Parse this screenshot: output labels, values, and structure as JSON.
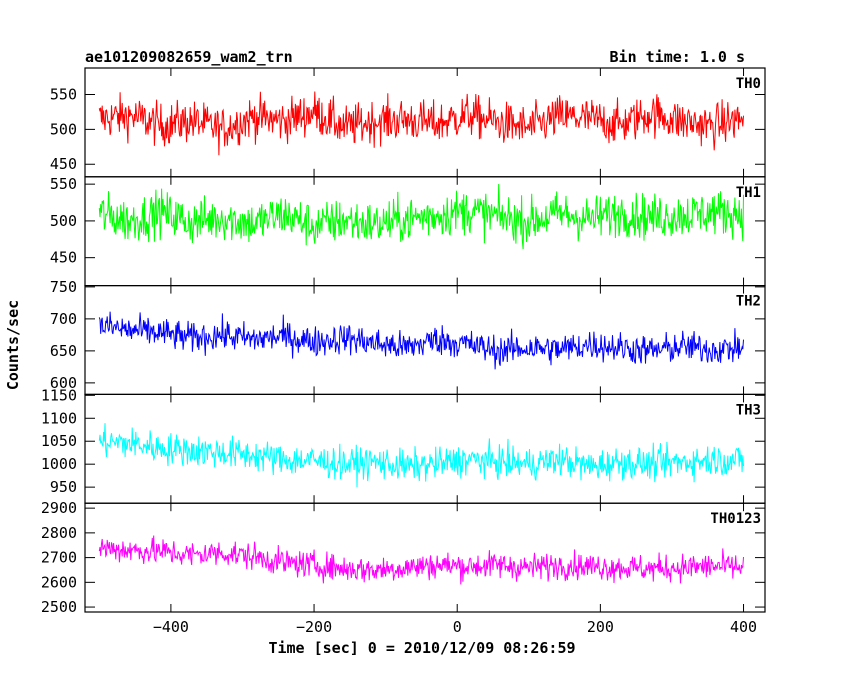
{
  "chart_data": {
    "type": "line",
    "title": "ae101209082659_wam2_trn",
    "subtitle": "Bin time: 1.0 s",
    "xlabel": "Time [sec] 0 = 2010/12/09 08:26:59",
    "ylabel": "Counts/sec",
    "xlim": [
      -520,
      430
    ],
    "x_range": [
      -500,
      400
    ],
    "xticks": [
      -400,
      -200,
      0,
      200,
      400
    ],
    "xtick_labels": [
      "−400",
      "−200",
      "0",
      "200",
      "400"
    ],
    "grid": false,
    "panels": [
      {
        "name": "TH0",
        "color": "#ff0000",
        "ylim": [
          432,
          588
        ],
        "yticks": [
          450,
          500,
          550
        ],
        "mean": 512,
        "spread": 28,
        "samples": [
          515,
          520,
          506,
          512,
          500,
          518,
          512,
          525,
          503,
          512,
          514,
          508,
          521,
          510,
          502,
          519,
          515,
          507,
          523,
          511,
          505,
          516
        ]
      },
      {
        "name": "TH1",
        "color": "#00ff00",
        "ylim": [
          412,
          560
        ],
        "yticks": [
          450,
          500,
          550
        ],
        "mean": 506,
        "spread": 28,
        "samples": [
          510,
          500,
          512,
          498,
          505,
          496,
          509,
          493,
          501,
          495,
          502,
          508,
          514,
          506,
          499,
          510,
          503,
          511,
          505,
          508,
          512,
          510
        ]
      },
      {
        "name": "TH2",
        "color": "#0000ff",
        "ylim": [
          582,
          752
        ],
        "yticks": [
          600,
          650,
          700,
          750
        ],
        "mean": 665,
        "spread": 22,
        "samples": [
          690,
          682,
          678,
          670,
          675,
          668,
          673,
          664,
          670,
          662,
          655,
          668,
          660,
          650,
          655,
          652,
          660,
          655,
          650,
          657,
          652,
          655
        ]
      },
      {
        "name": "TH3",
        "color": "#00ffff",
        "ylim": [
          915,
          1152
        ],
        "yticks": [
          950,
          1000,
          1050,
          1100,
          1150
        ],
        "mean": 1010,
        "spread": 32,
        "samples": [
          1050,
          1045,
          1035,
          1030,
          1025,
          1020,
          1010,
          1008,
          1000,
          1005,
          995,
          1000,
          1010,
          1005,
          1000,
          1010,
          995,
          1005,
          1000,
          1005,
          1010,
          1008
        ]
      },
      {
        "name": "TH0123",
        "color": "#ff00ff",
        "ylim": [
          2480,
          2920
        ],
        "yticks": [
          2500,
          2600,
          2700,
          2800,
          2900
        ],
        "mean": 2680,
        "spread": 50,
        "samples": [
          2740,
          2730,
          2725,
          2710,
          2720,
          2705,
          2680,
          2670,
          2655,
          2650,
          2660,
          2670,
          2665,
          2670,
          2660,
          2670,
          2665,
          2660,
          2655,
          2660,
          2665,
          2660
        ]
      }
    ]
  }
}
